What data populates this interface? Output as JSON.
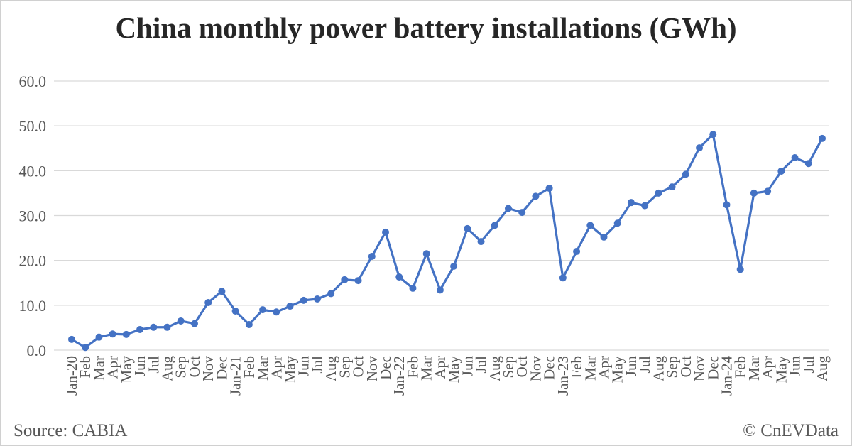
{
  "chart_data": {
    "type": "line",
    "title": "China monthly power battery installations (GWh)",
    "xlabel": "",
    "ylabel": "",
    "ylim": [
      0,
      60
    ],
    "yticks": [
      "0.0",
      "10.0",
      "20.0",
      "30.0",
      "40.0",
      "50.0",
      "60.0"
    ],
    "grid": true,
    "color": "#4472C4",
    "categories": [
      "Jan-20",
      "Feb",
      "Mar",
      "Apr",
      "May",
      "Jun",
      "Jul",
      "Aug",
      "Sep",
      "Oct",
      "Nov",
      "Dec",
      "Jan-21",
      "Feb",
      "Mar",
      "Apr",
      "May",
      "Jun",
      "Jul",
      "Aug",
      "Sep",
      "Oct",
      "Nov",
      "Dec",
      "Jan-22",
      "Feb",
      "Mar",
      "Apr",
      "May",
      "Jun",
      "Jul",
      "Aug",
      "Sep",
      "Oct",
      "Nov",
      "Dec",
      "Jan-23",
      "Feb",
      "Mar",
      "Apr",
      "May",
      "Jun",
      "Jul",
      "Aug",
      "Sep",
      "Oct",
      "Nov",
      "Dec",
      "Jan-24",
      "Feb",
      "Mar",
      "Apr",
      "May",
      "Jun",
      "Jul",
      "Aug"
    ],
    "values": [
      2.4,
      0.6,
      2.9,
      3.6,
      3.5,
      4.6,
      5.1,
      5.1,
      6.5,
      5.9,
      10.6,
      13.1,
      8.7,
      5.7,
      9.0,
      8.5,
      9.8,
      11.1,
      11.4,
      12.6,
      15.7,
      15.5,
      20.9,
      26.3,
      16.3,
      13.8,
      21.5,
      13.4,
      18.7,
      27.1,
      24.2,
      27.8,
      31.6,
      30.7,
      34.3,
      36.1,
      16.1,
      22.0,
      27.8,
      25.2,
      28.3,
      32.9,
      32.2,
      35.0,
      36.4,
      39.2,
      45.1,
      48.1,
      32.4,
      18.0,
      35.0,
      35.4,
      39.9,
      42.9,
      41.6,
      47.2
    ]
  },
  "footer": {
    "source": "Source: CABIA",
    "copyright": "© CnEVData"
  }
}
